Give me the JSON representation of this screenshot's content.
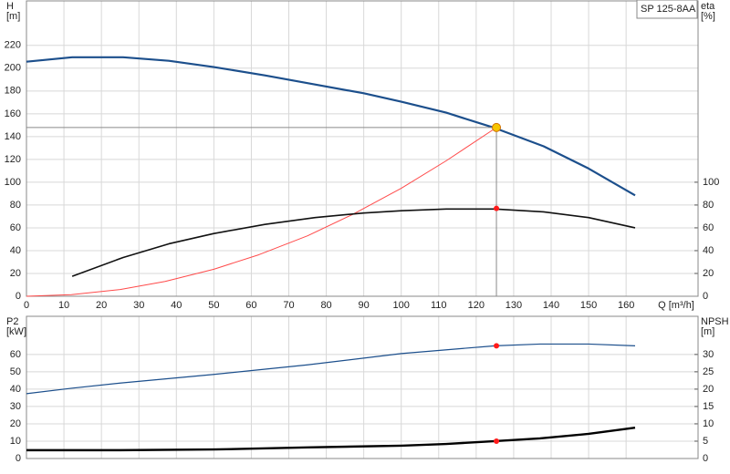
{
  "chart_data": [
    {
      "type": "line",
      "legend_label": "SP 125-8AA",
      "ylabel": "H",
      "yunit": "[m]",
      "y2label": "eta",
      "y2unit": "[%]",
      "xlabel": "Q [m³/h]",
      "xlim": [
        0,
        179.2
      ],
      "xticks": [
        0,
        10,
        20,
        30,
        40,
        50,
        60,
        70,
        80,
        90,
        100,
        110,
        120,
        130,
        140,
        150,
        160
      ],
      "ylim": [
        0,
        259
      ],
      "yticks": [
        0,
        20,
        40,
        60,
        80,
        100,
        120,
        140,
        160,
        180,
        200,
        220
      ],
      "y2lim": [
        0,
        259
      ],
      "y2ticks": [
        0,
        20,
        40,
        60,
        80,
        100
      ],
      "grid": true,
      "series": [
        {
          "color": "#1c4f8c",
          "width": 2.2,
          "x": [
            0,
            12.2,
            25.8,
            38,
            50,
            63.6,
            77,
            90,
            100,
            112,
            125,
            138,
            150,
            162.4
          ],
          "values": [
            205.7,
            209.6,
            209.6,
            206.5,
            201,
            193.7,
            185.7,
            178,
            170.6,
            161,
            147.5,
            131.5,
            112,
            88.5
          ]
        },
        {
          "color": "#ff4a4a",
          "width": 1,
          "x": [
            0,
            12,
            25,
            37,
            50,
            62,
            75,
            87,
            100,
            112,
            125.4
          ],
          "values": [
            0,
            1.4,
            5.9,
            13,
            23.7,
            36.4,
            53,
            71.7,
            94.7,
            118.8,
            148
          ]
        },
        {
          "color": "#111111",
          "width": 1.6,
          "axis": "y2",
          "x": [
            12.2,
            25.8,
            38,
            50,
            63.6,
            77,
            90,
            100,
            112,
            125,
            138,
            150,
            162.4
          ],
          "values": [
            17.5,
            34,
            46,
            55,
            63,
            69,
            73,
            75,
            76.5,
            76.5,
            74,
            69,
            60
          ]
        }
      ],
      "points": [
        {
          "x": 125.4,
          "y": 148,
          "color": "#f7c600",
          "stroke": "#d07000",
          "guide": true
        },
        {
          "x": 125.4,
          "y": 77,
          "axis": "y2",
          "color": "#ff1a1a"
        }
      ]
    },
    {
      "type": "line",
      "ylabel": "P2",
      "yunit": "[kW]",
      "y2label": "NPSH",
      "y2unit": "[m]",
      "xlim": [
        0,
        179.2
      ],
      "xticks": [
        0,
        10,
        20,
        30,
        40,
        50,
        60,
        70,
        80,
        90,
        100,
        110,
        120,
        130,
        140,
        150,
        160
      ],
      "xtick_labels": false,
      "ylim": [
        0,
        82
      ],
      "yticks": [
        0,
        10,
        20,
        30,
        40,
        50,
        60
      ],
      "y2lim": [
        0,
        41
      ],
      "y2ticks": [
        0,
        5,
        10,
        15,
        20,
        25,
        30
      ],
      "grid": true,
      "series": [
        {
          "color": "#1c4f8c",
          "width": 1.2,
          "x": [
            0,
            12,
            25,
            50,
            75,
            100,
            125,
            137,
            150,
            162.4
          ],
          "values": [
            37.4,
            40.5,
            43.5,
            48.5,
            54,
            60.5,
            65,
            66,
            66,
            65
          ]
        },
        {
          "color": "#000000",
          "width": 2.4,
          "axis": "y2",
          "x": [
            0,
            25,
            50,
            75,
            100,
            112,
            125,
            137,
            150,
            162.4
          ],
          "values": [
            2.4,
            2.4,
            2.6,
            3.2,
            3.7,
            4.2,
            5.0,
            5.8,
            7.1,
            8.9
          ]
        }
      ],
      "points": [
        {
          "x": 125.4,
          "y": 65,
          "color": "#ff1a1a"
        },
        {
          "x": 125.4,
          "y": 5.0,
          "axis": "y2",
          "color": "#ff1a1a"
        }
      ]
    }
  ]
}
